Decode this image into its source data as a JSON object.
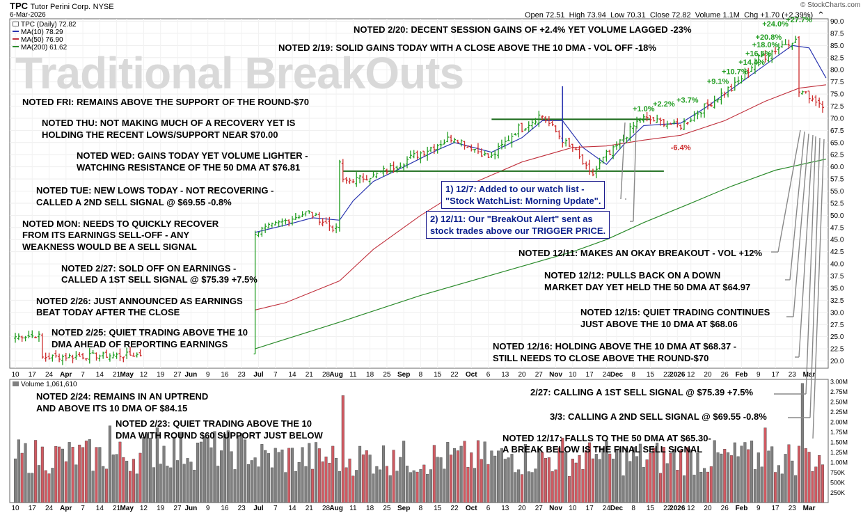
{
  "header": {
    "symbol": "TPC",
    "company": "Tutor Perini Corp.",
    "exchange": "NYSE",
    "date": "6-Mar-2026",
    "open_label": "Open",
    "open": "72.51",
    "high_label": "High",
    "high": "73.94",
    "low_label": "Low",
    "low": "70.31",
    "close_label": "Close",
    "close": "72.82",
    "volume_label": "Volume",
    "volume": "1.1M",
    "chg_label": "Chg",
    "chg": "+1.70 (+2.39%)",
    "credit": "© StockCharts.com"
  },
  "watermark": "Traditional BreakOuts",
  "legend": {
    "price": "TPC (Daily) 72.82",
    "ma10": "MA(10) 78.29",
    "ma50": "MA(50) 76.90",
    "ma200": "MA(200) 61.62",
    "volume": "Volume 1,061,610"
  },
  "colors": {
    "up": "#1f9c1f",
    "down": "#cc2a2a",
    "ma10": "#2a35b0",
    "ma50": "#c0303c",
    "ma200": "#2a8a2a",
    "vol_up": "#808080",
    "vol_down": "#d05a62",
    "level": "#1a6b1a"
  },
  "notes": {
    "n220": "NOTED 2/20: DECENT SESSION GAINS OF +2.4% YET VOLUME LAGGED -23%",
    "n219": "NOTED 2/19: SOLID GAINS TODAY WITH A CLOSE ABOVE THE 10 DMA - VOL OFF -18%",
    "nfri": "NOTED FRI: REMAINS ABOVE THE SUPPORT OF THE ROUND-$70",
    "nthu1": "NOTED THU: NOT MAKING MUCH OF A RECOVERY YET IS",
    "nthu2": "HOLDING THE RECENT LOWS/SUPPORT NEAR $70.00",
    "nwed1": "NOTED WED: GAINS TODAY YET VOLUME LIGHTER -",
    "nwed2": "WATCHING RESISTANCE OF THE 50 DMA AT $76.81",
    "ntue1": "NOTED TUE: NEW LOWS TODAY - NOT RECOVERING -",
    "ntue2": "CALLED A 2ND SELL SIGNAL @ $69.55 -0.8%",
    "nmon1": "NOTED MON: NEEDS TO QUICKLY RECOVER",
    "nmon2": "FROM ITS EARNINGS SELL-OFF - ANY",
    "nmon3": "WEAKNESS WOULD BE A SELL SIGNAL",
    "n227a": "NOTED 2/27: SOLD OFF ON EARNINGS -",
    "n227b": "CALLED A 1ST SELL SIGNAL @ $75.39  +7.5%",
    "n226a": "NOTED 2/26: JUST ANNOUNCED AS EARNINGS",
    "n226b": "BEAT TODAY AFTER THE CLOSE",
    "n225a": "NOTED 2/25: QUIET TRADING ABOVE THE 10",
    "n225b": "DMA AHEAD OF REPORTING EARNINGS",
    "n224a": "NOTED 2/24: REMAINS IN AN UPTREND",
    "n224b": "AND ABOVE ITS 10 DMA OF $84.15",
    "n223a": "NOTED 2/23: QUIET TRADING ABOVE THE 10",
    "n223b": "DMA WITH ROUND $60 SUPPORT JUST BELOW",
    "n1211": "NOTED 12/11: MAKES AN OKAY BREAKOUT - VOL +12%",
    "n1212a": "NOTED 12/12: PULLS BACK ON A DOWN",
    "n1212b": "MARKET DAY YET HELD THE 50 DMA AT $64.97",
    "n1215a": "NOTED 12/15: QUIET TRADING CONTINUES",
    "n1215b": "JUST ABOVE THE 10 DMA AT $68.06",
    "n1216a": "NOTED 12/16: HOLDING ABOVE THE 10 DMA AT $68.37 -",
    "n1216b": "STILL NEEDS TO CLOSE ABOVE THE ROUND-$70",
    "n227c": "2/27: CALLING A 1ST SELL SIGNAL @ $75.39  +7.5%",
    "n33": "3/3: CALLING A 2ND SELL SIGNAL @ $69.55  -0.8%",
    "n1217a": "NOTED 12/17: FALLS TO THE 50 DMA AT  $65.30-",
    "n1217b": "A BREAK BELOW IS THE FINAL SELL SIGNAL"
  },
  "boxes": {
    "b1a": "1) 12/7: Added to our watch list -",
    "b1b": "\"Stock WatchList: Morning Update\".",
    "b2a": "2) 12/11: Our \"BreakOut Alert\" sent as",
    "b2b": "stock trades above our TRIGGER PRICE."
  },
  "chart_data": {
    "type": "candlestick",
    "title": "TPC (Daily)",
    "price_axis": {
      "ticks": [
        20.0,
        22.5,
        25.0,
        27.5,
        30.0,
        32.5,
        35.0,
        37.5,
        40.0,
        42.5,
        45.0,
        47.5,
        50.0,
        52.5,
        55.0,
        57.5,
        60.0,
        62.5,
        65.0,
        67.5,
        70.0,
        72.5,
        75.0,
        77.5,
        80.0,
        82.5,
        85.0,
        87.5,
        90.0
      ],
      "ylim": [
        18.5,
        90.5
      ]
    },
    "volume_axis": {
      "ticks": [
        "3.00M",
        "2.75M",
        "2.50M",
        "2.25M",
        "2.00M",
        "1.75M",
        "1.50M",
        "1.25M",
        "1.00M",
        "750K",
        "500K",
        "250K"
      ],
      "values": [
        3000000,
        2750000,
        2500000,
        2250000,
        2000000,
        1750000,
        1500000,
        1250000,
        1000000,
        750000,
        500000,
        250000
      ],
      "ylim": [
        0,
        3050000
      ]
    },
    "x_labels": [
      "10",
      "17",
      "24",
      "Apr",
      "7",
      "14",
      "21",
      "May",
      "12",
      "19",
      "27",
      "Jun",
      "9",
      "16",
      "23",
      "Jul",
      "7",
      "14",
      "21",
      "28",
      "Aug",
      "11",
      "18",
      "25",
      "Sep",
      "8",
      "15",
      "22",
      "Oct",
      "6",
      "13",
      "20",
      "27",
      "Nov",
      "10",
      "17",
      "24",
      "Dec",
      "8",
      "15",
      "22",
      "2026",
      "12",
      "20",
      "26",
      "Feb",
      "9",
      "17",
      "23",
      "Mar"
    ],
    "x_label_bars": [
      0,
      5,
      10,
      15,
      20,
      25,
      30,
      33,
      38,
      43,
      48,
      52,
      57,
      62,
      67,
      72,
      77,
      82,
      87,
      92,
      95,
      100,
      105,
      110,
      115,
      120,
      125,
      130,
      135,
      140,
      145,
      150,
      155,
      160,
      165,
      170,
      175,
      178,
      183,
      188,
      193,
      196,
      200,
      205,
      210,
      215,
      220,
      225,
      230,
      235
    ],
    "n_bars": 240,
    "segments": [
      {
        "from": 0,
        "to": 8,
        "start": 25.0,
        "end": 25.2,
        "trend": 0.2
      },
      {
        "from": 8,
        "to": 9,
        "start": 25.0,
        "end": 20.8,
        "trend": 0
      },
      {
        "from": 9,
        "to": 38,
        "start": 20.8,
        "end": 21.3,
        "trend": 0.3
      },
      {
        "from": 38,
        "to": 71,
        "start": 21.3,
        "end": 21.3,
        "trend": 0
      },
      {
        "from": 71,
        "to": 87,
        "start": 46.5,
        "end": 50.5,
        "trend": 0.3
      },
      {
        "from": 87,
        "to": 96,
        "start": 50.5,
        "end": 47.0,
        "trend": 0.3
      },
      {
        "from": 96,
        "to": 97,
        "start": 47.0,
        "end": 61.0,
        "trend": 0
      },
      {
        "from": 97,
        "to": 106,
        "start": 57.0,
        "end": 58.0,
        "trend": 0.3
      },
      {
        "from": 106,
        "to": 130,
        "start": 58.0,
        "end": 66.0,
        "trend": 0.4
      },
      {
        "from": 130,
        "to": 141,
        "start": 66.0,
        "end": 62.0,
        "trend": 0.3
      },
      {
        "from": 141,
        "to": 150,
        "start": 62.0,
        "end": 68.0,
        "trend": 0.4
      },
      {
        "from": 150,
        "to": 156,
        "start": 68.0,
        "end": 70.5,
        "trend": 0.4
      },
      {
        "from": 156,
        "to": 165,
        "start": 70.5,
        "end": 64.0,
        "trend": 0.4
      },
      {
        "from": 165,
        "to": 171,
        "start": 64.0,
        "end": 58.5,
        "trend": 0.4
      },
      {
        "from": 171,
        "to": 176,
        "start": 58.5,
        "end": 62.5,
        "trend": 0.4
      },
      {
        "from": 176,
        "to": 186,
        "start": 62.5,
        "end": 70.0,
        "trend": 0.4
      },
      {
        "from": 186,
        "to": 197,
        "start": 70.0,
        "end": 68.5,
        "trend": 0.3
      },
      {
        "from": 197,
        "to": 212,
        "start": 68.5,
        "end": 76.0,
        "trend": 0.4
      },
      {
        "from": 212,
        "to": 222,
        "start": 76.0,
        "end": 83.0,
        "trend": 0.4
      },
      {
        "from": 222,
        "to": 230,
        "start": 83.0,
        "end": 86.0,
        "trend": 0.5
      },
      {
        "from": 230,
        "to": 232,
        "start": 86.0,
        "end": 86.0,
        "trend": 0.3
      },
      {
        "from": 232,
        "to": 233,
        "start": 86.0,
        "end": 75.4,
        "trend": 0
      },
      {
        "from": 233,
        "to": 240,
        "start": 75.4,
        "end": 72.8,
        "trend": 0.3
      }
    ],
    "gaps": [
      [
        38,
        71
      ]
    ],
    "moving_averages": {
      "ma10": {
        "name": "MA(10)",
        "last": 78.29,
        "points": [
          [
            71,
            46.5
          ],
          [
            80,
            48.0
          ],
          [
            88,
            49.5
          ],
          [
            96,
            49.0
          ],
          [
            100,
            53.0
          ],
          [
            106,
            57.0
          ],
          [
            115,
            60.0
          ],
          [
            125,
            63.5
          ],
          [
            130,
            65.0
          ],
          [
            141,
            63.0
          ],
          [
            150,
            66.0
          ],
          [
            156,
            69.5
          ],
          [
            162,
            69.5
          ],
          [
            168,
            64.0
          ],
          [
            175,
            60.5
          ],
          [
            180,
            64.5
          ],
          [
            186,
            68.5
          ],
          [
            197,
            69.0
          ],
          [
            205,
            72.5
          ],
          [
            212,
            76.0
          ],
          [
            222,
            81.0
          ],
          [
            230,
            85.0
          ],
          [
            235,
            84.5
          ],
          [
            240,
            78.3
          ]
        ]
      },
      "ma50": {
        "name": "MA(50)",
        "last": 76.9,
        "points": [
          [
            71,
            30.5
          ],
          [
            80,
            32.0
          ],
          [
            96,
            36.5
          ],
          [
            106,
            43.0
          ],
          [
            120,
            50.0
          ],
          [
            135,
            56.5
          ],
          [
            150,
            61.0
          ],
          [
            165,
            64.0
          ],
          [
            175,
            64.3
          ],
          [
            186,
            65.5
          ],
          [
            197,
            66.5
          ],
          [
            210,
            69.5
          ],
          [
            222,
            73.5
          ],
          [
            232,
            76.2
          ],
          [
            240,
            76.9
          ]
        ]
      },
      "ma200": {
        "name": "MA(200)",
        "last": 61.62,
        "points": [
          [
            71,
            22.5
          ],
          [
            96,
            28.0
          ],
          [
            120,
            33.5
          ],
          [
            150,
            39.5
          ],
          [
            165,
            42.5
          ],
          [
            175,
            45.0
          ],
          [
            186,
            48.5
          ],
          [
            200,
            52.5
          ],
          [
            212,
            56.0
          ],
          [
            225,
            59.3
          ],
          [
            240,
            61.6
          ]
        ]
      }
    },
    "levels": [
      {
        "name": "resistance",
        "value": 69.8,
        "from_bar": 141,
        "to_bar": 188
      },
      {
        "name": "support",
        "value": 59.1,
        "from_bar": 97,
        "to_bar": 192
      }
    ],
    "spike": {
      "bar": 162,
      "high": 76.6
    },
    "pct_labels": [
      {
        "text": "+1.0%",
        "bar": 186,
        "price": 71.4,
        "color": "up"
      },
      {
        "text": "+2.2%",
        "bar": 192,
        "price": 72.4,
        "color": "up"
      },
      {
        "text": "-6.4%",
        "bar": 197,
        "price": 63.5,
        "color": "down"
      },
      {
        "text": "+3.7%",
        "bar": 199,
        "price": 73.2,
        "color": "up"
      },
      {
        "text": "+9.1%",
        "bar": 208,
        "price": 77.1,
        "color": "up"
      },
      {
        "text": "+10.7%",
        "bar": 213,
        "price": 79.1,
        "color": "up"
      },
      {
        "text": "+14.4%",
        "bar": 218,
        "price": 81.0,
        "color": "up"
      },
      {
        "text": "+16.5%",
        "bar": 220,
        "price": 82.8,
        "color": "up"
      },
      {
        "text": "+18.0%",
        "bar": 222,
        "price": 84.6,
        "color": "up"
      },
      {
        "text": "+20.8%",
        "bar": 223,
        "price": 86.2,
        "color": "up"
      },
      {
        "text": "+24.0%",
        "bar": 225,
        "price": 88.9,
        "color": "up"
      },
      {
        "text": "+27.7%",
        "bar": 232,
        "price": 89.8,
        "color": "up"
      }
    ],
    "volume": {
      "segments": [
        {
          "from": 0,
          "to": 38,
          "base": 700000,
          "spread": 900000
        },
        {
          "from": 38,
          "to": 71,
          "base": 800000,
          "spread": 1000000
        },
        {
          "from": 71,
          "to": 240,
          "base": 650000,
          "spread": 900000
        }
      ],
      "spikes": [
        [
          28,
          1900000
        ],
        [
          42,
          1850000
        ],
        [
          55,
          1500000
        ],
        [
          97,
          2650000
        ],
        [
          112,
          1300000
        ],
        [
          147,
          1200000
        ],
        [
          162,
          1600000
        ],
        [
          172,
          1200000
        ],
        [
          215,
          1400000
        ],
        [
          222,
          1850000
        ],
        [
          233,
          2950000
        ],
        [
          235,
          1250000
        ]
      ]
    }
  }
}
